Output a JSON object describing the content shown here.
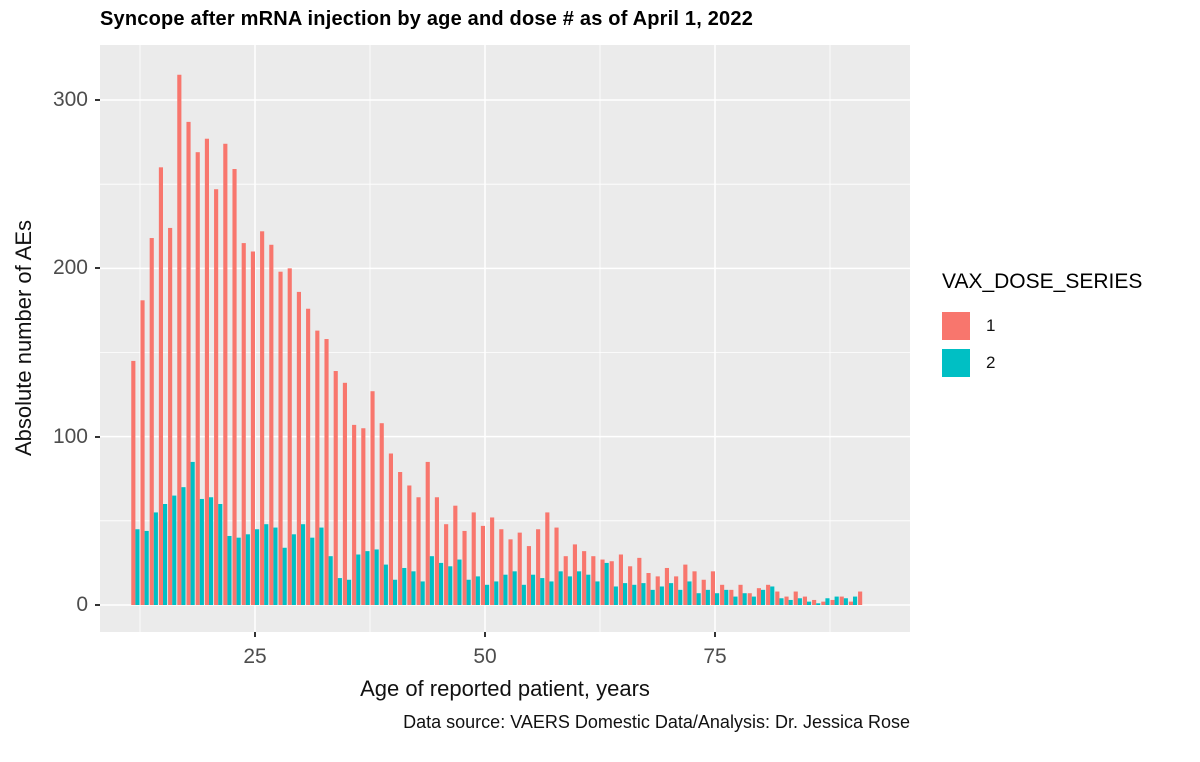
{
  "caption": "Data source: VAERS Domestic Data/Analysis: Dr. Jessica Rose",
  "colors": {
    "dose1": "#F8766D",
    "dose2": "#00BFC4",
    "panel_bg": "#EBEBEB",
    "grid": "#FFFFFF",
    "tick_text": "#4d4d4d",
    "tick_mark": "#333333"
  },
  "legend": {
    "title": "VAX_DOSE_SERIES",
    "entries": [
      {
        "label": "1",
        "color_key": "dose1"
      },
      {
        "label": "2",
        "color_key": "dose2"
      }
    ]
  },
  "chart_data": {
    "type": "bar",
    "title": "Syncope after mRNA injection by age and dose # as of April 1, 2022",
    "xlabel": "Age of reported patient, years",
    "ylabel": "Absolute number of AEs",
    "legend_position": "right",
    "grid": true,
    "ylim": [
      0,
      332
    ],
    "y_ticks": [
      0,
      100,
      200,
      300
    ],
    "y_minor": [
      50,
      150,
      250
    ],
    "x_ticks": [
      25,
      50,
      75
    ],
    "x_minor": [
      12.5,
      37.5,
      62.5,
      87.5
    ],
    "x": [
      12,
      13,
      14,
      15,
      16,
      17,
      18,
      19,
      20,
      21,
      22,
      23,
      24,
      25,
      26,
      27,
      28,
      29,
      30,
      31,
      32,
      33,
      34,
      35,
      36,
      37,
      38,
      39,
      40,
      41,
      42,
      43,
      44,
      45,
      46,
      47,
      48,
      49,
      50,
      51,
      52,
      53,
      54,
      55,
      56,
      57,
      58,
      59,
      60,
      61,
      62,
      63,
      64,
      65,
      66,
      67,
      68,
      69,
      70,
      71,
      72,
      73,
      74,
      75,
      76,
      77,
      78,
      79,
      80,
      81,
      82,
      83,
      84,
      85,
      86,
      87,
      88,
      89,
      90,
      91
    ],
    "series": [
      {
        "name": "1",
        "values": [
          145,
          181,
          218,
          260,
          224,
          315,
          287,
          269,
          277,
          247,
          274,
          259,
          215,
          210,
          222,
          214,
          198,
          200,
          186,
          176,
          163,
          158,
          139,
          132,
          107,
          105,
          127,
          108,
          90,
          79,
          71,
          64,
          85,
          64,
          48,
          59,
          44,
          55,
          47,
          52,
          45,
          39,
          43,
          35,
          45,
          55,
          46,
          29,
          36,
          32,
          29,
          27,
          26,
          30,
          23,
          28,
          19,
          17,
          22,
          17,
          24,
          20,
          15,
          20,
          12,
          9,
          12,
          7,
          10,
          12,
          8,
          5,
          8,
          5,
          3,
          2,
          3,
          5,
          2,
          8
        ]
      },
      {
        "name": "2",
        "values": [
          45,
          44,
          55,
          60,
          65,
          70,
          85,
          63,
          64,
          60,
          41,
          40,
          42,
          45,
          48,
          46,
          34,
          42,
          48,
          40,
          46,
          29,
          16,
          15,
          30,
          32,
          33,
          24,
          15,
          22,
          20,
          14,
          29,
          25,
          23,
          27,
          15,
          17,
          12,
          14,
          18,
          20,
          12,
          18,
          16,
          14,
          20,
          17,
          20,
          18,
          14,
          25,
          11,
          13,
          12,
          13,
          9,
          11,
          13,
          9,
          14,
          7,
          9,
          7,
          9,
          5,
          7,
          5,
          9,
          11,
          4,
          3,
          4,
          2,
          1,
          4,
          5,
          4,
          5,
          0
        ]
      }
    ]
  }
}
